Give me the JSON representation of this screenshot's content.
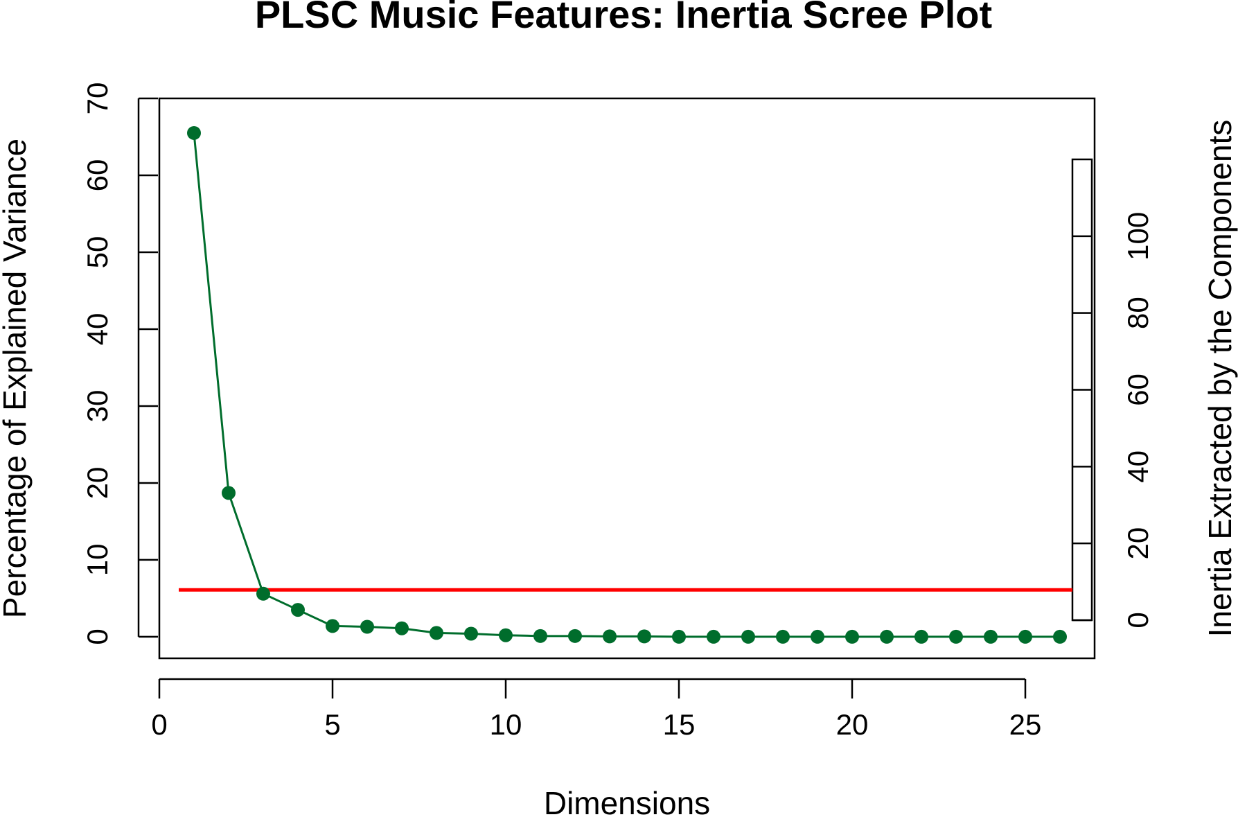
{
  "chart_data": {
    "type": "line",
    "title": "PLSC Music Features: Inertia Scree Plot",
    "xlabel": "Dimensions",
    "ylabel": "Percentage of Explained Variance",
    "y2label": "Inertia Extracted by the Components",
    "xlim": [
      0,
      27
    ],
    "ylim": [
      -2.8,
      70
    ],
    "y2lim": [
      0,
      120
    ],
    "x_ticks": [
      0,
      5,
      10,
      15,
      20,
      25
    ],
    "y_ticks": [
      0,
      10,
      20,
      30,
      40,
      50,
      60,
      70
    ],
    "y2_ticks": [
      0,
      20,
      40,
      60,
      80,
      100
    ],
    "grid": false,
    "series": [
      {
        "color": "#006D2C",
        "x": [
          1,
          2,
          3,
          4,
          5,
          6,
          7,
          8,
          9,
          10,
          11,
          12,
          13,
          14,
          15,
          16,
          17,
          18,
          19,
          20,
          21,
          22,
          23,
          24,
          25,
          26
        ],
        "values": [
          65.5,
          18.7,
          5.6,
          3.5,
          1.4,
          1.3,
          1.1,
          0.5,
          0.4,
          0.2,
          0.1,
          0.1,
          0.05,
          0.05,
          0,
          0,
          0,
          0,
          0,
          0,
          0,
          0,
          0,
          0,
          0,
          0
        ]
      }
    ],
    "reference_line": {
      "y": 6.1,
      "color": "#FF0000"
    }
  }
}
